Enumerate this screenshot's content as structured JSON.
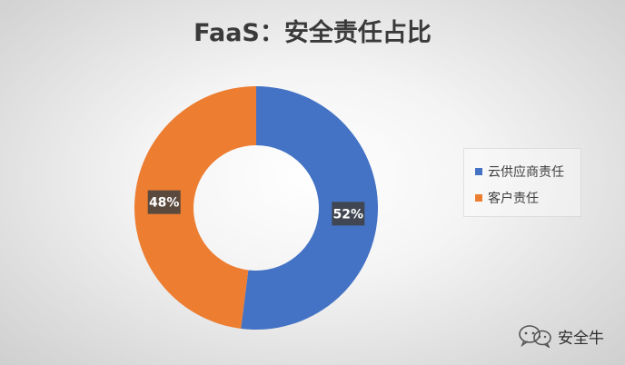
{
  "chart_data": {
    "type": "pie",
    "title": "FaaS：安全责任占比",
    "donut": true,
    "series": [
      {
        "name": "云供应商责任",
        "value": 52,
        "label": "52%",
        "color": "#4472C4"
      },
      {
        "name": "客户责任",
        "value": 48,
        "label": "48%",
        "color": "#ED7D31"
      }
    ],
    "legend_position": "right"
  },
  "watermark": {
    "text": "安全牛",
    "icon": "wechat-icon"
  }
}
